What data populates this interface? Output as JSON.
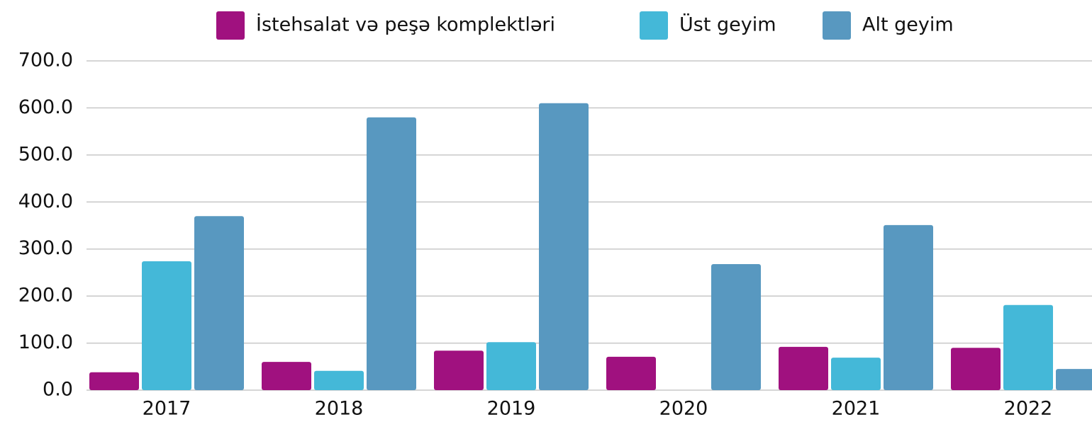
{
  "chart_data": {
    "type": "bar",
    "categories": [
      "2017",
      "2018",
      "2019",
      "2020",
      "2021",
      "2022"
    ],
    "series": [
      {
        "name": "İstehsalat və peşə komplektləri",
        "color": "#a0117f",
        "values": [
          38,
          60,
          84,
          71,
          92,
          90
        ]
      },
      {
        "name": "Üst geyim",
        "color": "#44b8d8",
        "values": [
          274,
          41,
          102,
          0,
          69,
          181
        ]
      },
      {
        "name": "Alt geyim",
        "color": "#5898c0",
        "values": [
          370,
          580,
          610,
          268,
          351,
          45
        ]
      }
    ],
    "ylim": [
      0,
      700
    ],
    "yticks": [
      {
        "value": 0,
        "label": "0.0"
      },
      {
        "value": 100,
        "label": "100.0"
      },
      {
        "value": 200,
        "label": "200.0"
      },
      {
        "value": 300,
        "label": "300.0"
      },
      {
        "value": 400,
        "label": "400.0"
      },
      {
        "value": 500,
        "label": "500.0"
      },
      {
        "value": 600,
        "label": "600.0"
      },
      {
        "value": 700,
        "label": "700.0"
      }
    ],
    "grid": true,
    "legend": "top"
  }
}
